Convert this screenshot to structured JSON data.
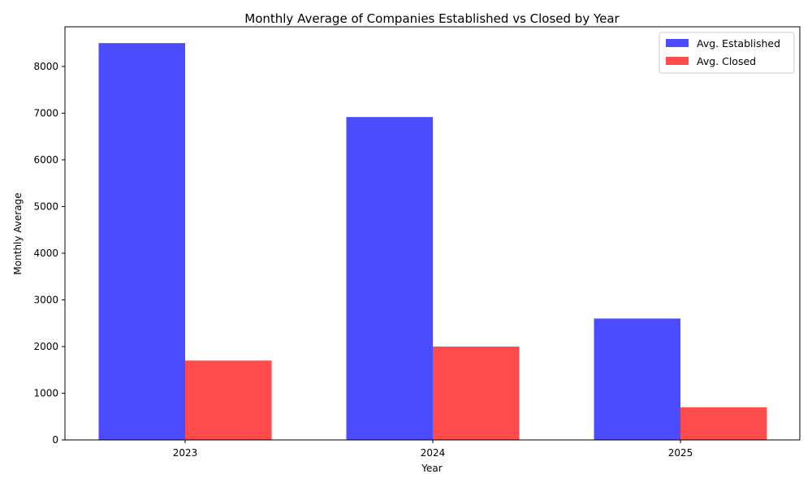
{
  "chart_data": {
    "type": "bar",
    "title": "Monthly Average of Companies Established vs Closed by Year",
    "xlabel": "Year",
    "ylabel": "Monthly Average",
    "categories": [
      "2023",
      "2024",
      "2025"
    ],
    "series": [
      {
        "name": "Avg. Established",
        "values": [
          8500,
          6917,
          2600
        ],
        "color": "#4b4bff"
      },
      {
        "name": "Avg. Closed",
        "values": [
          1700,
          2000,
          700
        ],
        "color": "#ff4b4b"
      }
    ],
    "ylim": [
      0,
      8850
    ],
    "yticks": [
      0,
      1000,
      2000,
      3000,
      4000,
      5000,
      6000,
      7000,
      8000
    ],
    "grid": false,
    "legend_position": "top-right"
  }
}
